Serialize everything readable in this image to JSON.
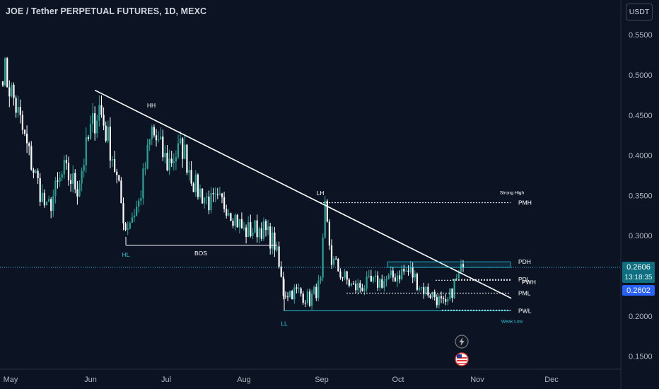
{
  "header": {
    "title": "JOE / Tether PERPETUAL FUTURES, 1D, MEXC",
    "currency_button": "USDT"
  },
  "price_labels": {
    "last_price": "0.2606",
    "countdown": "13:18:35",
    "secondary_price": "0.2602"
  },
  "colors": {
    "background": "#0c1424",
    "bull": "#26a69a",
    "bear": "#ffffff",
    "price_line": "#26c6da",
    "price_badge": "#0f6e80",
    "secondary_badge": "#2962ff",
    "trendline": "#ffffff",
    "axis_text": "#b2b5be"
  },
  "icons": {
    "flash": "lightning-bolt-icon",
    "flag": "us-flag-icon"
  },
  "chart_data": {
    "type": "candlestick",
    "title": "JOE / Tether PERPETUAL FUTURES, 1D, MEXC",
    "x_tick_labels": [
      "May",
      "Jun",
      "Jul",
      "Aug",
      "Sep",
      "Oct",
      "Nov",
      "Dec"
    ],
    "y_tick_labels": [
      "0.5500",
      "0.5000",
      "0.4500",
      "0.4000",
      "0.3500",
      "0.3000",
      "0.2500",
      "0.2000",
      "0.1500"
    ],
    "y_ticks": [
      0.55,
      0.5,
      0.45,
      0.4,
      0.35,
      0.3,
      0.25,
      0.2,
      0.15
    ],
    "last_price": 0.2606,
    "price_anchors": [
      {
        "day": 0,
        "price": 0.51
      },
      {
        "day": 5,
        "price": 0.47
      },
      {
        "day": 12,
        "price": 0.4
      },
      {
        "day": 20,
        "price": 0.33
      },
      {
        "day": 28,
        "price": 0.38
      },
      {
        "day": 34,
        "price": 0.36
      },
      {
        "day": 40,
        "price": 0.43
      },
      {
        "day": 44,
        "price": 0.46
      },
      {
        "day": 50,
        "price": 0.4
      },
      {
        "day": 56,
        "price": 0.31
      },
      {
        "day": 62,
        "price": 0.34
      },
      {
        "day": 68,
        "price": 0.43
      },
      {
        "day": 75,
        "price": 0.39
      },
      {
        "day": 82,
        "price": 0.41
      },
      {
        "day": 88,
        "price": 0.36
      },
      {
        "day": 95,
        "price": 0.34
      },
      {
        "day": 102,
        "price": 0.34
      },
      {
        "day": 110,
        "price": 0.305
      },
      {
        "day": 118,
        "price": 0.31
      },
      {
        "day": 124,
        "price": 0.29
      },
      {
        "day": 128,
        "price": 0.23
      },
      {
        "day": 135,
        "price": 0.23
      },
      {
        "day": 140,
        "price": 0.22
      },
      {
        "day": 145,
        "price": 0.24
      },
      {
        "day": 147,
        "price": 0.33
      },
      {
        "day": 150,
        "price": 0.27
      },
      {
        "day": 155,
        "price": 0.25
      },
      {
        "day": 160,
        "price": 0.235
      },
      {
        "day": 168,
        "price": 0.24
      },
      {
        "day": 176,
        "price": 0.245
      },
      {
        "day": 182,
        "price": 0.255
      },
      {
        "day": 186,
        "price": 0.255
      },
      {
        "day": 191,
        "price": 0.235
      },
      {
        "day": 197,
        "price": 0.225
      },
      {
        "day": 202,
        "price": 0.21
      },
      {
        "day": 206,
        "price": 0.24
      },
      {
        "day": 210,
        "price": 0.2606
      }
    ],
    "annotations": [
      {
        "text": "HH"
      },
      {
        "text": "HL"
      },
      {
        "text": "BOS"
      },
      {
        "text": "LH"
      },
      {
        "text": "LL"
      },
      {
        "text": "Strong High"
      },
      {
        "text": "Weak Low"
      },
      {
        "text": "PMH"
      },
      {
        "text": "PDH"
      },
      {
        "text": "PDL"
      },
      {
        "text": "PWH"
      },
      {
        "text": "PWL"
      },
      {
        "text": "PML"
      }
    ],
    "levels": {
      "PMH": 0.341,
      "PDH": 0.2675,
      "PDL": 0.2455,
      "PWH": 0.2445,
      "PWL": 0.2064,
      "PML": 0.2285,
      "BOS": 0.288,
      "LL": 0.2064
    },
    "trendline": {
      "from": {
        "day": 42,
        "price": 0.481
      },
      "to": {
        "day": 232,
        "price": 0.222
      }
    },
    "ylim": [
      0.13,
      0.58
    ],
    "grid": false,
    "legend": "none"
  }
}
